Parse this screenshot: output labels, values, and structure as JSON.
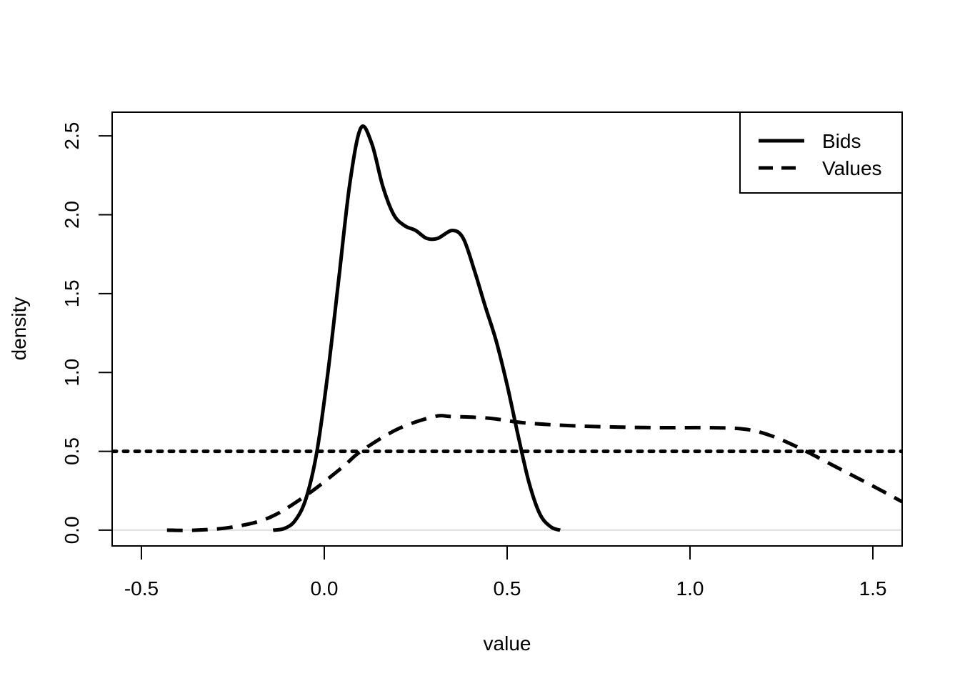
{
  "chart_data": {
    "type": "line",
    "title": "",
    "xlabel": "value",
    "ylabel": "density",
    "xlim": [
      -0.58,
      1.58
    ],
    "ylim": [
      -0.1,
      2.65
    ],
    "x_ticks": [
      -0.5,
      0.0,
      0.5,
      1.0,
      1.5
    ],
    "x_tick_labels": [
      "-0.5",
      "0.0",
      "0.5",
      "1.0",
      "1.5"
    ],
    "y_ticks": [
      0.0,
      0.5,
      1.0,
      1.5,
      2.0,
      2.5
    ],
    "y_tick_labels": [
      "0.0",
      "0.5",
      "1.0",
      "1.5",
      "2.0",
      "2.5"
    ],
    "zero_line": {
      "y": 0,
      "color": "#d3d3d3"
    },
    "legend": {
      "position": "top-right"
    },
    "series": [
      {
        "name": "Bids",
        "line_style": "solid",
        "color": "#000000",
        "points": [
          [
            -0.14,
            0.0
          ],
          [
            -0.11,
            0.01
          ],
          [
            -0.08,
            0.06
          ],
          [
            -0.05,
            0.2
          ],
          [
            -0.02,
            0.5
          ],
          [
            0.01,
            1.0
          ],
          [
            0.04,
            1.6
          ],
          [
            0.07,
            2.2
          ],
          [
            0.1,
            2.55
          ],
          [
            0.13,
            2.45
          ],
          [
            0.16,
            2.18
          ],
          [
            0.19,
            2.0
          ],
          [
            0.22,
            1.93
          ],
          [
            0.25,
            1.9
          ],
          [
            0.28,
            1.85
          ],
          [
            0.31,
            1.85
          ],
          [
            0.35,
            1.9
          ],
          [
            0.38,
            1.85
          ],
          [
            0.41,
            1.65
          ],
          [
            0.44,
            1.42
          ],
          [
            0.47,
            1.2
          ],
          [
            0.5,
            0.92
          ],
          [
            0.53,
            0.6
          ],
          [
            0.56,
            0.3
          ],
          [
            0.59,
            0.1
          ],
          [
            0.62,
            0.02
          ],
          [
            0.645,
            0.0
          ]
        ]
      },
      {
        "name": "Values",
        "line_style": "dashed",
        "color": "#000000",
        "points": [
          [
            -0.43,
            0.0
          ],
          [
            -0.35,
            0.0
          ],
          [
            -0.25,
            0.02
          ],
          [
            -0.15,
            0.08
          ],
          [
            -0.05,
            0.22
          ],
          [
            0.05,
            0.4
          ],
          [
            0.1,
            0.5
          ],
          [
            0.2,
            0.64
          ],
          [
            0.3,
            0.72
          ],
          [
            0.35,
            0.72
          ],
          [
            0.45,
            0.71
          ],
          [
            0.55,
            0.68
          ],
          [
            0.7,
            0.66
          ],
          [
            0.9,
            0.65
          ],
          [
            1.05,
            0.65
          ],
          [
            1.15,
            0.64
          ],
          [
            1.22,
            0.6
          ],
          [
            1.3,
            0.52
          ],
          [
            1.4,
            0.4
          ],
          [
            1.5,
            0.28
          ],
          [
            1.58,
            0.18
          ]
        ]
      },
      {
        "name": "",
        "line_style": "dotted",
        "color": "#000000",
        "points": [
          [
            -0.58,
            0.5
          ],
          [
            1.58,
            0.5
          ]
        ]
      }
    ]
  }
}
